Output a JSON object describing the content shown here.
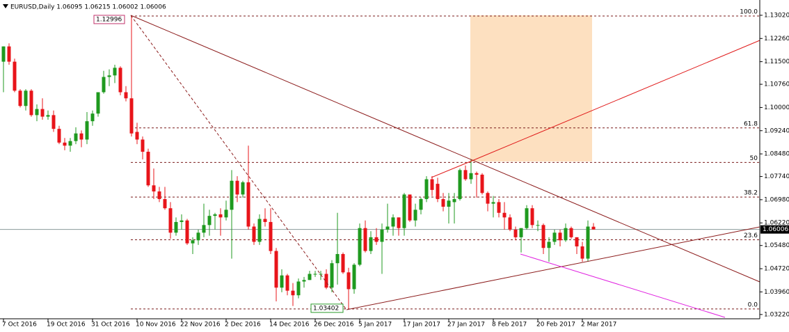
{
  "chart_data": {
    "type": "candlestick",
    "title": "EURUSD,Daily  1.06095 1.06215 1.06002 1.06006",
    "categories": [
      "7 Oct 2016",
      null,
      null,
      null,
      null,
      null,
      null,
      null,
      "19 Oct 2016",
      null,
      null,
      null,
      null,
      null,
      null,
      null,
      "31 Oct 2016",
      null,
      null,
      null,
      null,
      null,
      null,
      null,
      "10 Nov 2016",
      null,
      null,
      null,
      null,
      null,
      null,
      null,
      "22 Nov 2016",
      null,
      null,
      null,
      null,
      null,
      null,
      null,
      "2 Dec 2016",
      null,
      null,
      null,
      null,
      null,
      null,
      null,
      "14 Dec 2016",
      null,
      null,
      null,
      null,
      null,
      null,
      null,
      "26 Dec 2016",
      null,
      null,
      null,
      null,
      null,
      null,
      null,
      "5 Jan 2017",
      null,
      null,
      null,
      null,
      null,
      null,
      null,
      "17 Jan 2017",
      null,
      null,
      null,
      null,
      null,
      null,
      null,
      "27 Jan 2017",
      null,
      null,
      null,
      null,
      null,
      null,
      null,
      "8 Feb 2017",
      null,
      null,
      null,
      null,
      null,
      null,
      null,
      "20 Feb 2017",
      null,
      null,
      null,
      null,
      null,
      null,
      null,
      "2 Mar 2017",
      null,
      null
    ],
    "open": [
      1.115,
      1.12,
      1.115,
      1.1055,
      1.1005,
      1.1055,
      1.0975,
      1.0995,
      1.097,
      1.0975,
      1.093,
      1.0885,
      1.0875,
      1.089,
      1.0915,
      1.0895,
      1.0955,
      1.098,
      1.105,
      1.11,
      1.1105,
      1.113,
      1.105,
      1.103,
      1.092,
      1.0895,
      1.0855,
      1.0745,
      1.0725,
      1.07,
      1.067,
      1.059,
      1.0625,
      1.063,
      1.0555,
      1.0565,
      1.059,
      1.0615,
      1.0645,
      1.065,
      1.064,
      1.0665,
      1.076,
      1.0715,
      1.0755,
      1.061,
      1.056,
      1.0635,
      1.0625,
      1.053,
      1.041,
      1.045,
      1.04,
      1.0385,
      1.043,
      1.0435,
      1.0455,
      1.0455,
      1.0455,
      1.041,
      1.049,
      1.052,
      1.046,
      1.0405,
      1.0485,
      1.0605,
      1.053,
      1.0575,
      1.056,
      1.06,
      1.061,
      1.064,
      1.0605,
      1.0715,
      1.063,
      1.0665,
      1.07,
      1.0765,
      1.075,
      1.07,
      1.0675,
      1.069,
      1.07,
      1.0795,
      1.0765,
      1.0785,
      1.078,
      1.072,
      1.0685,
      1.069,
      1.0655,
      1.064,
      1.06,
      1.0575,
      1.0605,
      1.067,
      1.0615,
      1.0615,
      1.054,
      1.056,
      1.059,
      1.0565,
      1.0605,
      1.0575,
      1.0545,
      1.0505,
      1.06095
    ],
    "high": [
      1.12,
      1.121,
      1.116,
      1.106,
      1.106,
      1.106,
      1.101,
      1.103,
      1.099,
      1.099,
      1.094,
      1.09,
      1.09,
      1.0935,
      1.0925,
      1.0985,
      1.099,
      1.105,
      1.112,
      1.1125,
      1.114,
      1.1135,
      1.107,
      1.12996,
      1.095,
      1.0905,
      1.0865,
      1.08,
      1.074,
      1.074,
      1.069,
      1.064,
      1.065,
      1.0635,
      1.0575,
      1.06,
      1.0685,
      1.0665,
      1.0655,
      1.067,
      1.0695,
      1.0795,
      1.0775,
      1.076,
      1.0875,
      1.062,
      1.065,
      1.067,
      1.067,
      1.054,
      1.047,
      1.0455,
      1.0425,
      1.044,
      1.0445,
      1.0465,
      1.0465,
      1.0465,
      1.047,
      1.05,
      1.0655,
      1.0525,
      1.0475,
      1.049,
      1.062,
      1.063,
      1.0595,
      1.0605,
      1.062,
      1.0685,
      1.065,
      1.064,
      1.072,
      1.0715,
      1.0685,
      1.0705,
      1.0775,
      1.0775,
      1.077,
      1.072,
      1.072,
      1.072,
      1.08,
      1.081,
      1.0829,
      1.079,
      1.0785,
      1.0725,
      1.071,
      1.07,
      1.069,
      1.065,
      1.061,
      1.06,
      1.068,
      1.068,
      1.063,
      1.062,
      1.0575,
      1.06,
      1.06,
      1.062,
      1.061,
      1.0575,
      1.056,
      1.063,
      1.06215
    ],
    "low": [
      1.105,
      1.114,
      1.105,
      1.1,
      1.099,
      1.097,
      1.0955,
      1.096,
      1.096,
      1.092,
      1.088,
      1.086,
      1.0855,
      1.088,
      1.087,
      1.088,
      1.094,
      1.097,
      1.1045,
      1.107,
      1.108,
      1.104,
      1.102,
      1.0905,
      1.088,
      1.083,
      1.074,
      1.07,
      1.069,
      1.0665,
      1.057,
      1.058,
      1.06,
      1.055,
      1.052,
      1.055,
      1.0575,
      1.058,
      1.06,
      1.058,
      1.063,
      1.0505,
      1.069,
      1.0705,
      1.06,
      1.055,
      1.055,
      1.061,
      1.052,
      1.0365,
      1.0395,
      1.0385,
      1.035,
      1.0375,
      1.041,
      1.0435,
      1.0445,
      1.0435,
      1.0405,
      1.0395,
      1.042,
      1.0455,
      1.03402,
      1.039,
      1.048,
      1.0525,
      1.052,
      1.055,
      1.0455,
      1.059,
      1.058,
      1.058,
      1.058,
      1.0625,
      1.061,
      1.065,
      1.069,
      1.071,
      1.069,
      1.066,
      1.062,
      1.062,
      1.0695,
      1.076,
      1.075,
      1.0705,
      1.0715,
      1.066,
      1.064,
      1.064,
      1.06,
      1.0595,
      1.0565,
      1.0525,
      1.06,
      1.0605,
      1.0595,
      1.052,
      1.0495,
      1.055,
      1.0545,
      1.056,
      1.057,
      1.052,
      1.0495,
      1.0495,
      1.06002
    ],
    "close": [
      1.12,
      1.115,
      1.1055,
      1.1005,
      1.1055,
      1.0975,
      1.0995,
      1.097,
      1.0975,
      1.093,
      1.0885,
      1.0875,
      1.089,
      1.0915,
      1.0895,
      1.0955,
      1.098,
      1.105,
      1.11,
      1.1105,
      1.113,
      1.105,
      1.103,
      1.0915,
      1.0895,
      1.0855,
      1.0745,
      1.0725,
      1.07,
      1.067,
      1.059,
      1.0625,
      1.063,
      1.0555,
      1.0565,
      1.059,
      1.0615,
      1.0645,
      1.065,
      1.064,
      1.0665,
      1.076,
      1.0715,
      1.0755,
      1.061,
      1.056,
      1.0635,
      1.0625,
      1.053,
      1.041,
      1.045,
      1.04,
      1.0385,
      1.043,
      1.0435,
      1.0455,
      1.0455,
      1.0455,
      1.041,
      1.049,
      1.052,
      1.046,
      1.0405,
      1.0485,
      1.0605,
      1.053,
      1.0575,
      1.056,
      1.06,
      1.061,
      1.064,
      1.0605,
      1.0715,
      1.063,
      1.0665,
      1.07,
      1.0765,
      1.073,
      1.07,
      1.0675,
      1.0695,
      1.07,
      1.0795,
      1.0765,
      1.0785,
      1.078,
      1.072,
      1.0685,
      1.069,
      1.0655,
      1.064,
      1.06,
      1.0575,
      1.0605,
      1.067,
      1.0615,
      1.0615,
      1.054,
      1.056,
      1.059,
      1.0565,
      1.0605,
      1.0575,
      1.0545,
      1.0505,
      1.061,
      1.06006
    ],
    "up_color": "#1f9a1f",
    "down_color": "#e8141a",
    "ylim": [
      1.0308,
      1.1352
    ],
    "yticks": [
      {
        "value": 1.1302,
        "label": "1.13020"
      },
      {
        "value": 1.1226,
        "label": "1.12260"
      },
      {
        "value": 1.115,
        "label": "1.11500"
      },
      {
        "value": 1.1076,
        "label": "1.10760"
      },
      {
        "value": 1.1,
        "label": "1.10000"
      },
      {
        "value": 1.0924,
        "label": "1.09240"
      },
      {
        "value": 1.0848,
        "label": "1.08480"
      },
      {
        "value": 1.0774,
        "label": "1.07740"
      },
      {
        "value": 1.0698,
        "label": "1.06980"
      },
      {
        "value": 1.0622,
        "label": "1.06220"
      },
      {
        "value": 1.0548,
        "label": "1.05480"
      },
      {
        "value": 1.0472,
        "label": "1.04720"
      },
      {
        "value": 1.0396,
        "label": "1.03960"
      },
      {
        "value": 1.0322,
        "label": "1.03220"
      }
    ],
    "current_price": 1.06006,
    "annotations": [
      1.12996,
      1.03402
    ],
    "fib_levels": [
      {
        "value": 100,
        "label": "100.0"
      },
      61.8,
      50,
      38.2,
      23.6,
      {
        "value": 0,
        "label": "0.0"
      }
    ]
  }
}
